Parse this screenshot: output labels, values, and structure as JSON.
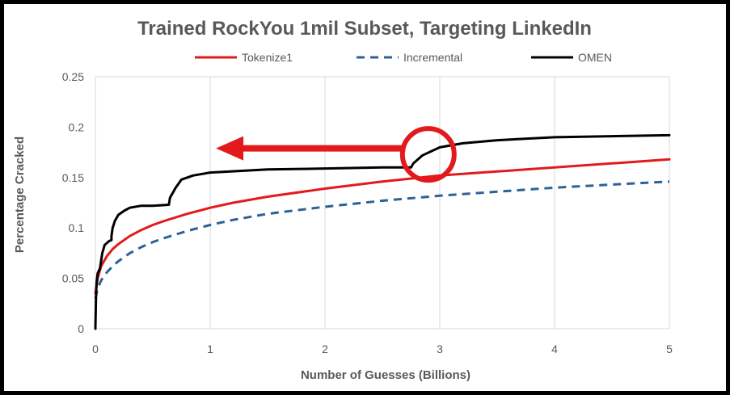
{
  "chart_data": {
    "type": "line",
    "title": "Trained RockYou 1mil Subset, Targeting LinkedIn",
    "xlabel": "Number of Guesses (Billions)",
    "ylabel": "Percentage Cracked",
    "xlim": [
      0,
      5
    ],
    "ylim": [
      0,
      0.25
    ],
    "xticks": [
      "0",
      "1",
      "2",
      "3",
      "4",
      "5"
    ],
    "yticks": [
      "0",
      "0.05",
      "0.1",
      "0.15",
      "0.2",
      "0.25"
    ],
    "grid": "vertical",
    "legend_position": "top",
    "series": [
      {
        "name": "Tokenize1",
        "color": "#e31a1c",
        "style": "solid",
        "points": [
          [
            0,
            0.035
          ],
          [
            0.02,
            0.05
          ],
          [
            0.05,
            0.062
          ],
          [
            0.1,
            0.072
          ],
          [
            0.15,
            0.079
          ],
          [
            0.2,
            0.084
          ],
          [
            0.3,
            0.092
          ],
          [
            0.4,
            0.098
          ],
          [
            0.5,
            0.103
          ],
          [
            0.6,
            0.107
          ],
          [
            0.8,
            0.114
          ],
          [
            1.0,
            0.12
          ],
          [
            1.2,
            0.125
          ],
          [
            1.5,
            0.131
          ],
          [
            2.0,
            0.139
          ],
          [
            2.5,
            0.146
          ],
          [
            3.0,
            0.152
          ],
          [
            3.5,
            0.156
          ],
          [
            4.0,
            0.16
          ],
          [
            4.5,
            0.164
          ],
          [
            5.0,
            0.168
          ]
        ]
      },
      {
        "name": "Incremental",
        "color": "#2e6294",
        "style": "dashed",
        "points": [
          [
            0,
            0.03
          ],
          [
            0.02,
            0.04
          ],
          [
            0.05,
            0.048
          ],
          [
            0.1,
            0.056
          ],
          [
            0.15,
            0.062
          ],
          [
            0.2,
            0.067
          ],
          [
            0.3,
            0.075
          ],
          [
            0.4,
            0.081
          ],
          [
            0.5,
            0.086
          ],
          [
            0.6,
            0.09
          ],
          [
            0.8,
            0.097
          ],
          [
            1.0,
            0.103
          ],
          [
            1.2,
            0.108
          ],
          [
            1.5,
            0.114
          ],
          [
            2.0,
            0.121
          ],
          [
            2.5,
            0.127
          ],
          [
            3.0,
            0.132
          ],
          [
            3.5,
            0.136
          ],
          [
            4.0,
            0.14
          ],
          [
            4.5,
            0.143
          ],
          [
            5.0,
            0.146
          ]
        ]
      },
      {
        "name": "OMEN",
        "color": "#000000",
        "style": "solid",
        "points": [
          [
            0,
            0
          ],
          [
            0.005,
            0.03
          ],
          [
            0.01,
            0.045
          ],
          [
            0.02,
            0.055
          ],
          [
            0.04,
            0.06
          ],
          [
            0.06,
            0.075
          ],
          [
            0.08,
            0.083
          ],
          [
            0.12,
            0.087
          ],
          [
            0.14,
            0.088
          ],
          [
            0.14,
            0.092
          ],
          [
            0.15,
            0.1
          ],
          [
            0.17,
            0.107
          ],
          [
            0.2,
            0.113
          ],
          [
            0.25,
            0.117
          ],
          [
            0.3,
            0.12
          ],
          [
            0.4,
            0.122
          ],
          [
            0.5,
            0.122
          ],
          [
            0.64,
            0.123
          ],
          [
            0.65,
            0.13
          ],
          [
            0.7,
            0.14
          ],
          [
            0.75,
            0.148
          ],
          [
            0.85,
            0.152
          ],
          [
            1.0,
            0.155
          ],
          [
            1.5,
            0.158
          ],
          [
            2.0,
            0.159
          ],
          [
            2.5,
            0.16
          ],
          [
            2.75,
            0.16
          ],
          [
            2.77,
            0.164
          ],
          [
            2.85,
            0.172
          ],
          [
            3.0,
            0.18
          ],
          [
            3.2,
            0.184
          ],
          [
            3.5,
            0.187
          ],
          [
            4.0,
            0.19
          ],
          [
            4.5,
            0.191
          ],
          [
            5.0,
            0.192
          ]
        ]
      }
    ],
    "annotations": [
      {
        "type": "circle",
        "color": "#e31a1c",
        "x": 2.9,
        "y": 0.173
      },
      {
        "type": "arrow",
        "color": "#e31a1c",
        "from": [
          2.7,
          0.179
        ],
        "to": [
          1.05,
          0.179
        ]
      }
    ]
  }
}
